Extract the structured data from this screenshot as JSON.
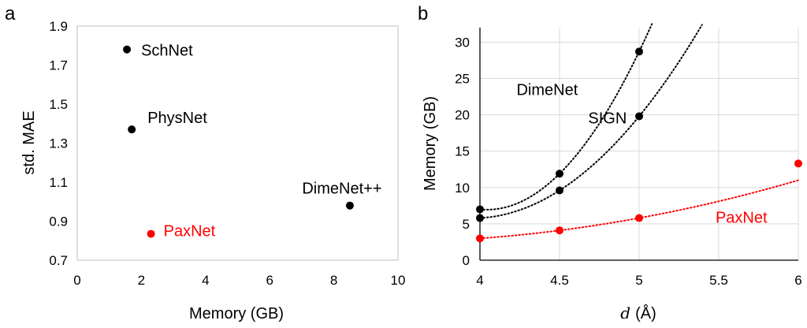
{
  "chart_data": [
    {
      "type": "scatter",
      "panel_label": "a",
      "xlabel": "Memory (GB)",
      "ylabel": "std. MAE",
      "xlim": [
        0,
        10
      ],
      "ylim": [
        0.7,
        1.9
      ],
      "x_ticks": [
        "0",
        "2",
        "4",
        "6",
        "8",
        "10"
      ],
      "y_ticks": [
        "0.7",
        "0.9",
        "1.1",
        "1.3",
        "1.5",
        "1.7",
        "1.9"
      ],
      "grid": false,
      "points": [
        {
          "label": "SchNet",
          "x": 1.55,
          "y": 1.78,
          "color": "#000000"
        },
        {
          "label": "PhysNet",
          "x": 1.7,
          "y": 1.37,
          "color": "#000000"
        },
        {
          "label": "DimeNet++",
          "x": 8.5,
          "y": 0.98,
          "color": "#000000"
        },
        {
          "label": "PaxNet",
          "x": 2.3,
          "y": 0.835,
          "color": "#ff0000"
        }
      ]
    },
    {
      "type": "scatter",
      "panel_label": "b",
      "xlabel_var": "d",
      "xlabel_unit": "(Å)",
      "ylabel": "Memory (GB)",
      "xlim": [
        4,
        6
      ],
      "ylim": [
        0,
        32
      ],
      "x_ticks": [
        "4",
        "4.5",
        "5",
        "5.5",
        "6"
      ],
      "y_ticks": [
        "0",
        "5",
        "10",
        "15",
        "20",
        "25",
        "30"
      ],
      "grid": true,
      "trendlines": "dotted",
      "series": [
        {
          "name": "DimeNet",
          "color": "#000000",
          "x": [
            4,
            4.5,
            5
          ],
          "y": [
            7.0,
            11.9,
            28.7
          ]
        },
        {
          "name": "SIGN",
          "color": "#000000",
          "x": [
            4,
            4.5,
            5
          ],
          "y": [
            5.8,
            9.6,
            19.8
          ]
        },
        {
          "name": "PaxNet",
          "color": "#ff0000",
          "x": [
            4,
            4.5,
            5,
            6
          ],
          "y": [
            3.0,
            4.1,
            5.8,
            13.3
          ]
        }
      ]
    }
  ]
}
